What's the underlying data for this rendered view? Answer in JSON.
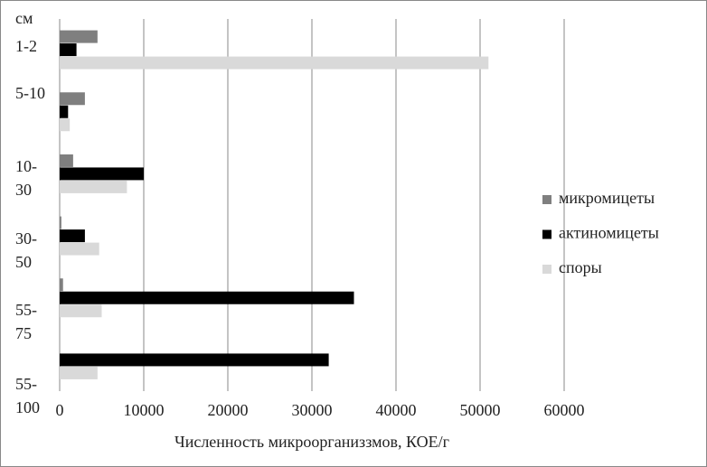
{
  "chart_data": {
    "type": "hbar",
    "y_unit": "см",
    "x_label": "Численность микроорганиззмов, КОЕ/г",
    "categories": [
      "1-2",
      "5-10",
      "10-30",
      "30-50",
      "55-75",
      "55-100"
    ],
    "series": [
      {
        "name": "микромицеты",
        "color": "#7f7f7f",
        "values": [
          4500,
          3000,
          1600,
          200,
          400,
          0
        ]
      },
      {
        "name": "актиномицеты",
        "color": "#000000",
        "values": [
          2000,
          1000,
          10000,
          3000,
          35000,
          32000
        ]
      },
      {
        "name": "споры",
        "color": "#d9d9d9",
        "values": [
          51000,
          1200,
          8000,
          4700,
          5000,
          4500
        ]
      }
    ],
    "xlim": [
      0,
      60000
    ],
    "xticks": [
      0,
      10000,
      20000,
      30000,
      40000,
      50000,
      60000
    ],
    "grid": true,
    "legend": "right"
  }
}
